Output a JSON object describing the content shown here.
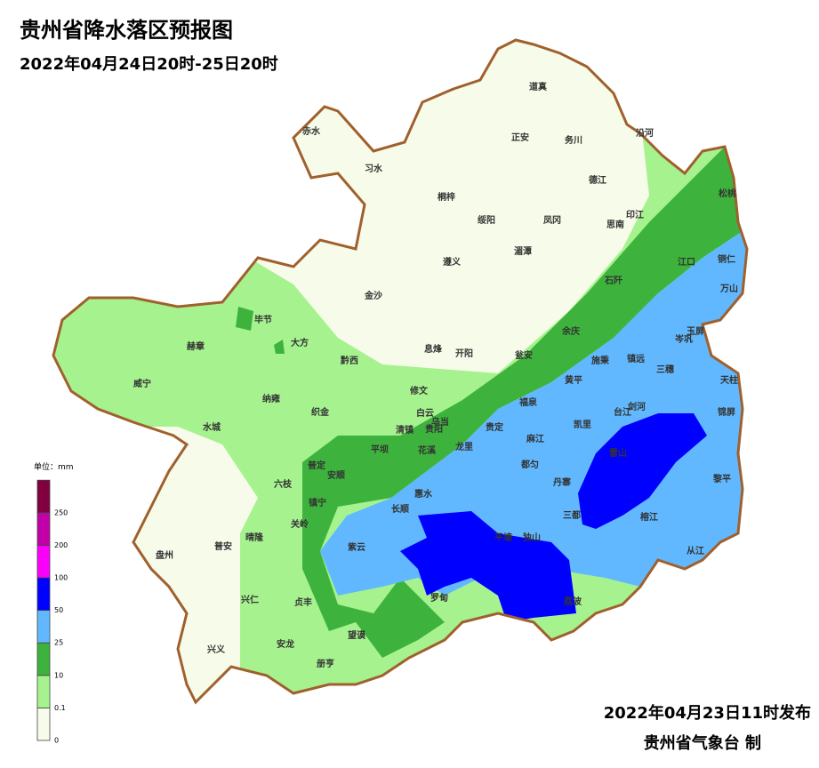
{
  "header": {
    "title": "贵州省降水落区预报图",
    "subtitle": "2022年04月24日20时-25日20时"
  },
  "legend": {
    "unit": "单位：mm",
    "items": [
      {
        "label": "0",
        "color": "#f7fbe9"
      },
      {
        "label": "0.1",
        "color": "#a6f28f"
      },
      {
        "label": "10",
        "color": "#3db33d"
      },
      {
        "label": "25",
        "color": "#61b8ff"
      },
      {
        "label": "50",
        "color": "#0000fe"
      },
      {
        "label": "100",
        "color": "#fa00fa"
      },
      {
        "label": "200",
        "color": "#c200a8"
      },
      {
        "label": "250",
        "color": "#810040"
      }
    ]
  },
  "map": {
    "labels": [
      "赤水",
      "习水",
      "道真",
      "正安",
      "务川",
      "沿河",
      "桐梓",
      "绥阳",
      "凤冈",
      "德江",
      "思南",
      "印江",
      "松桃",
      "遵义",
      "湄潭",
      "石阡",
      "江口",
      "铜仁",
      "万山",
      "金沙",
      "毕节",
      "大方",
      "赫章",
      "黔西",
      "息烽",
      "开阳",
      "瓮安",
      "余庆",
      "施秉",
      "镇远",
      "玉屏",
      "岑巩",
      "三穗",
      "天柱",
      "威宁",
      "纳雍",
      "织金",
      "修文",
      "黄平",
      "福泉",
      "凯里",
      "台江",
      "剑河",
      "锦屏",
      "白云",
      "乌当",
      "清镇",
      "贵阳",
      "贵定",
      "麻江",
      "水城",
      "平坝",
      "花溪",
      "龙里",
      "雷山",
      "都匀",
      "普定",
      "安顺",
      "六枝",
      "丹寨",
      "黎平",
      "惠水",
      "镇宁",
      "长顺",
      "三都",
      "榕江",
      "关岭",
      "平塘",
      "独山",
      "盘州",
      "普安",
      "晴隆",
      "紫云",
      "从江",
      "兴仁",
      "贞丰",
      "罗甸",
      "荔波",
      "望谟",
      "安龙",
      "兴义",
      "册亨"
    ]
  },
  "footer": {
    "issued": "2022年04月23日11时发布",
    "agency": "贵州省气象台 制"
  }
}
